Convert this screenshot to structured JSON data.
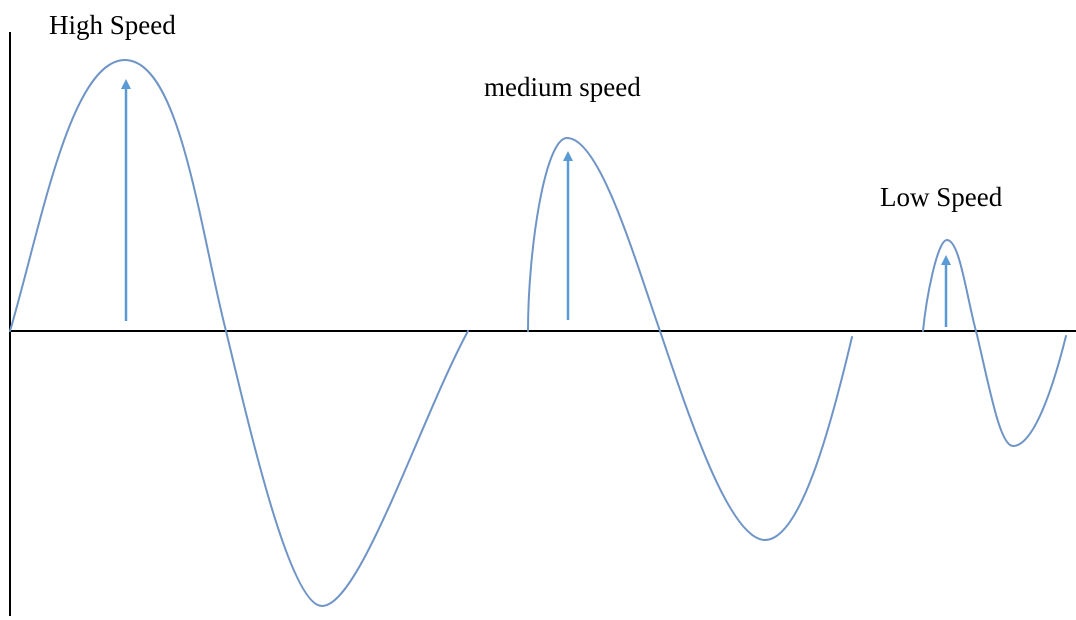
{
  "labels": {
    "high": "High Speed",
    "medium": "medium speed",
    "low": "Low Speed"
  },
  "colors": {
    "wave": "#6f94c6",
    "arrow": "#5b9bd5",
    "axis": "#000000",
    "text": "#000000",
    "background": "#ffffff"
  }
}
